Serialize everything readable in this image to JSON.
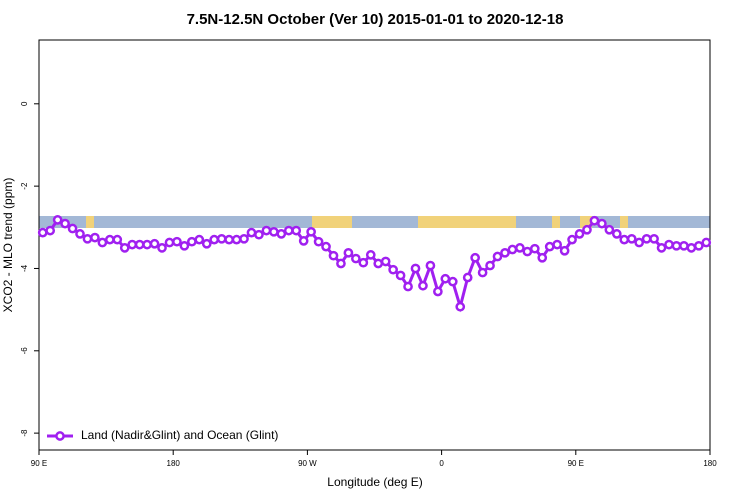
{
  "chart_data": {
    "type": "line",
    "title": "7.5N-12.5N October (Ver 10)   2015-01-01 to 2020-12-18",
    "x_label": "Longitude (deg E)",
    "y_label": "XCO2 - MLO trend (ppm)",
    "xlim": [
      90,
      540
    ],
    "xticks": [
      {
        "value": 90,
        "label": "90 E"
      },
      180,
      {
        "value": 270,
        "label": "90 W"
      },
      {
        "value": 360,
        "label": "0"
      },
      {
        "value": 450,
        "label": "90 E"
      },
      {
        "value": 540,
        "label": "180"
      }
    ],
    "ylim": [
      -8.41,
      1.55
    ],
    "yticks": [
      0,
      -2,
      -4,
      -6,
      -8
    ],
    "legend": "bottom-left",
    "x": [
      92.5,
      97.5,
      102.5,
      107.5,
      112.5,
      117.5,
      122.5,
      127.5,
      132.5,
      137.5,
      142.5,
      147.5,
      152.5,
      157.5,
      162.5,
      167.5,
      172.5,
      177.5,
      182.5,
      187.5,
      192.5,
      197.5,
      202.5,
      207.5,
      212.5,
      217.5,
      222.5,
      227.5,
      232.5,
      237.5,
      242.5,
      247.5,
      252.5,
      257.5,
      262.5,
      267.5,
      272.5,
      277.5,
      282.5,
      287.5,
      292.5,
      297.5,
      302.5,
      307.5,
      312.5,
      317.5,
      322.5,
      327.5,
      332.5,
      337.5,
      342.5,
      347.5,
      352.5,
      357.5,
      362.5,
      367.5,
      372.5,
      377.5,
      382.5,
      387.5,
      392.5,
      397.5,
      402.5,
      407.5,
      412.5,
      417.5,
      422.5,
      427.5,
      432.5,
      437.5,
      442.5,
      447.5,
      452.5,
      457.5,
      462.5,
      467.5,
      472.5,
      477.5,
      482.5,
      487.5,
      492.5,
      497.5,
      502.5,
      507.5,
      512.5,
      517.5,
      522.5,
      527.5,
      532.5,
      537.5
    ],
    "series": [
      {
        "name": "Land (Nadir&Glint) and Ocean (Glint)",
        "color": "#a020f0",
        "values": [
          -3.13,
          -3.08,
          -2.82,
          -2.91,
          -3.03,
          -3.16,
          -3.28,
          -3.25,
          -3.37,
          -3.3,
          -3.3,
          -3.5,
          -3.42,
          -3.42,
          -3.42,
          -3.4,
          -3.5,
          -3.37,
          -3.35,
          -3.45,
          -3.35,
          -3.3,
          -3.4,
          -3.3,
          -3.28,
          -3.3,
          -3.3,
          -3.28,
          -3.13,
          -3.18,
          -3.08,
          -3.11,
          -3.16,
          -3.08,
          -3.08,
          -3.33,
          -3.11,
          -3.35,
          -3.47,
          -3.69,
          -3.88,
          -3.62,
          -3.76,
          -3.86,
          -3.67,
          -3.88,
          -3.83,
          -4.03,
          -4.17,
          -4.44,
          -4.0,
          -4.42,
          -3.93,
          -4.56,
          -4.25,
          -4.32,
          -4.93,
          -4.22,
          -3.74,
          -4.1,
          -3.93,
          -3.71,
          -3.62,
          -3.54,
          -3.5,
          -3.59,
          -3.52,
          -3.74,
          -3.47,
          -3.42,
          -3.57,
          -3.3,
          -3.16,
          -3.06,
          -2.84,
          -2.91,
          -3.06,
          -3.16,
          -3.3,
          -3.28,
          -3.37,
          -3.28,
          -3.28,
          -3.5,
          -3.42,
          -3.45,
          -3.45,
          -3.5,
          -3.45,
          -3.37
        ]
      }
    ]
  }
}
